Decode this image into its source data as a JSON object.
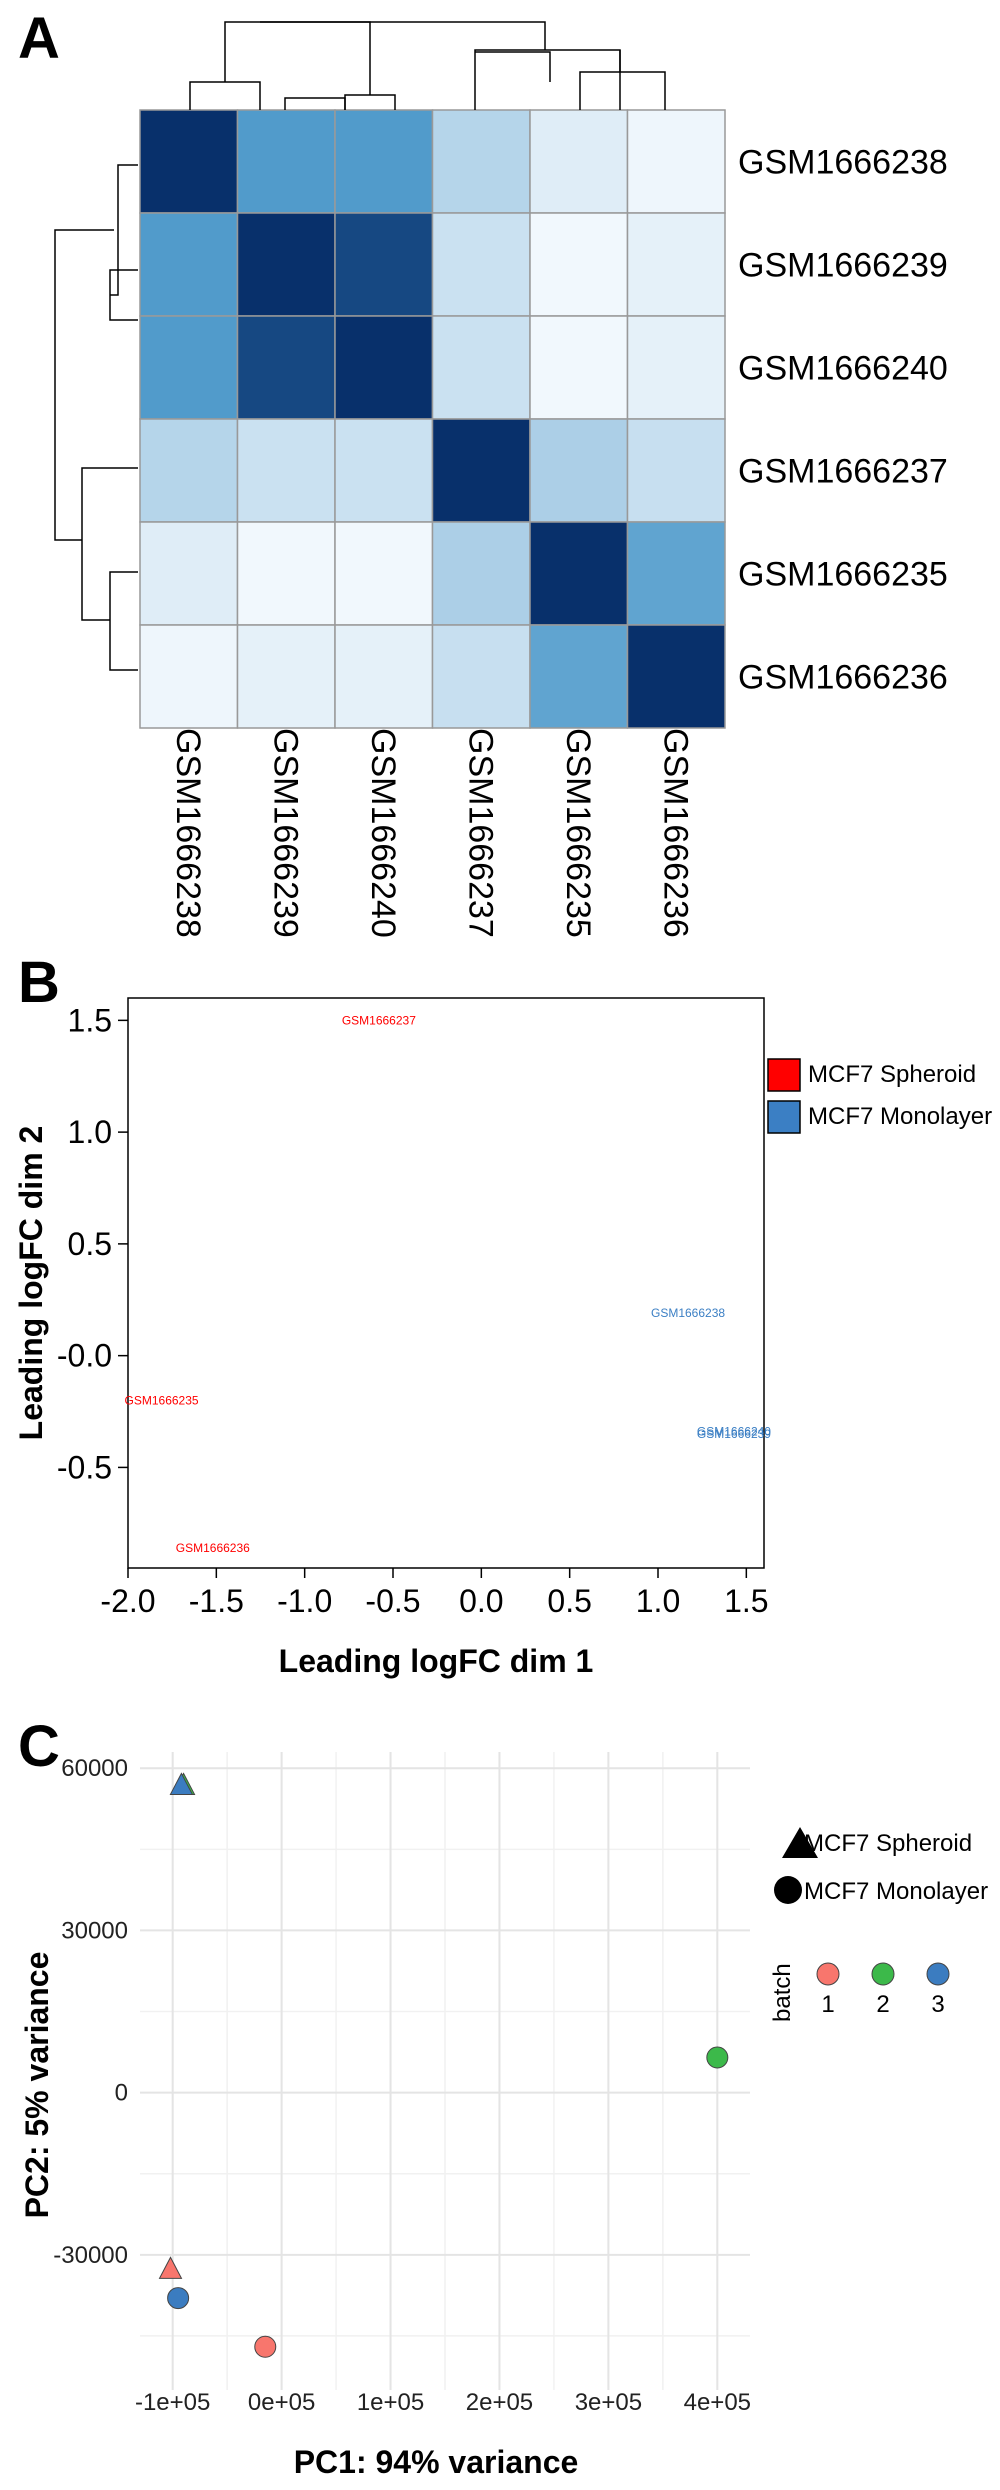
{
  "chart_data": [
    {
      "panel": "A",
      "type": "heatmap",
      "rows": [
        "GSM1666238",
        "GSM1666239",
        "GSM1666240",
        "GSM1666237",
        "GSM1666235",
        "GSM1666236"
      ],
      "columns": [
        "GSM1666238",
        "GSM1666239",
        "GSM1666240",
        "GSM1666237",
        "GSM1666235",
        "GSM1666236"
      ],
      "values": [
        [
          1.0,
          0.55,
          0.55,
          0.22,
          0.08,
          0.03
        ],
        [
          0.55,
          1.0,
          0.9,
          0.15,
          0.02,
          0.06
        ],
        [
          0.55,
          0.9,
          1.0,
          0.15,
          0.02,
          0.06
        ],
        [
          0.22,
          0.15,
          0.15,
          1.0,
          0.25,
          0.16
        ],
        [
          0.08,
          0.02,
          0.02,
          0.25,
          1.0,
          0.5
        ],
        [
          0.03,
          0.06,
          0.06,
          0.16,
          0.5,
          1.0
        ]
      ],
      "dendrogram": "rows and columns clustered",
      "colors": {
        "low": "#f7fbff",
        "high": "#08306b"
      }
    },
    {
      "panel": "B",
      "type": "scatter",
      "xlabel": "Leading logFC dim 1",
      "ylabel": "Leading logFC dim 2",
      "xlim": [
        -2.0,
        1.6
      ],
      "ylim": [
        -0.95,
        1.6
      ],
      "xticks": [
        "-2.0",
        "-1.5",
        "-1.0",
        "-0.5",
        "0.0",
        "0.5",
        "1.0",
        "1.5"
      ],
      "yticks": [
        "1.5",
        "1.0",
        "0.5",
        "-0.0",
        "-0.5"
      ],
      "points": [
        {
          "label": "GSM1666237",
          "x": -0.58,
          "y": 1.5,
          "group": "MCF7 Spheroid"
        },
        {
          "label": "GSM1666235",
          "x": -1.81,
          "y": -0.2,
          "group": "MCF7 Spheroid"
        },
        {
          "label": "GSM1666236",
          "x": -1.52,
          "y": -0.86,
          "group": "MCF7 Spheroid"
        },
        {
          "label": "GSM1666238",
          "x": 1.17,
          "y": 0.19,
          "group": "MCF7 Monolayer"
        },
        {
          "label": "GSM1666239",
          "x": 1.43,
          "y": -0.35,
          "group": "MCF7 Monolayer"
        },
        {
          "label": "GSM1666240",
          "x": 1.43,
          "y": -0.34,
          "group": "MCF7 Monolayer"
        }
      ],
      "legend": [
        {
          "label": "MCF7 Spheroid",
          "color": "#ff0000"
        },
        {
          "label": "MCF7 Monolayer",
          "color": "#3b7fc4"
        }
      ],
      "legend_placement": "right"
    },
    {
      "panel": "C",
      "type": "scatter",
      "xlabel": "PC1: 94% variance",
      "ylabel": "PC2: 5% variance",
      "xlim": [
        -130000,
        430000
      ],
      "ylim": [
        -55000,
        63000
      ],
      "xticks": [
        "-1e+05",
        "0e+05",
        "1e+05",
        "2e+05",
        "3e+05",
        "4e+05"
      ],
      "yticks": [
        "60000",
        "30000",
        "0",
        "-30000"
      ],
      "grid": true,
      "points": [
        {
          "x": -90000,
          "y": 57000,
          "shape": "triangle",
          "batch": "2"
        },
        {
          "x": -92000,
          "y": 57000,
          "shape": "triangle",
          "batch": "3"
        },
        {
          "x": 400000,
          "y": 6500,
          "shape": "circle",
          "batch": "2"
        },
        {
          "x": -102000,
          "y": -32500,
          "shape": "triangle",
          "batch": "1"
        },
        {
          "x": -95000,
          "y": -38000,
          "shape": "circle",
          "batch": "3"
        },
        {
          "x": -15000,
          "y": -47000,
          "shape": "circle",
          "batch": "1"
        }
      ],
      "shape_legend": [
        {
          "label": "MCF7 Spheroid",
          "shape": "triangle"
        },
        {
          "label": "MCF7 Monolayer",
          "shape": "circle"
        }
      ],
      "color_legend": {
        "title": "batch",
        "items": [
          {
            "label": "1",
            "color": "#f8766d"
          },
          {
            "label": "2",
            "color": "#3cb94a"
          },
          {
            "label": "3",
            "color": "#3b7cc0"
          }
        ]
      },
      "legend_placement": "right"
    }
  ],
  "panels": {
    "a": "A",
    "b": "B",
    "c": "C"
  }
}
